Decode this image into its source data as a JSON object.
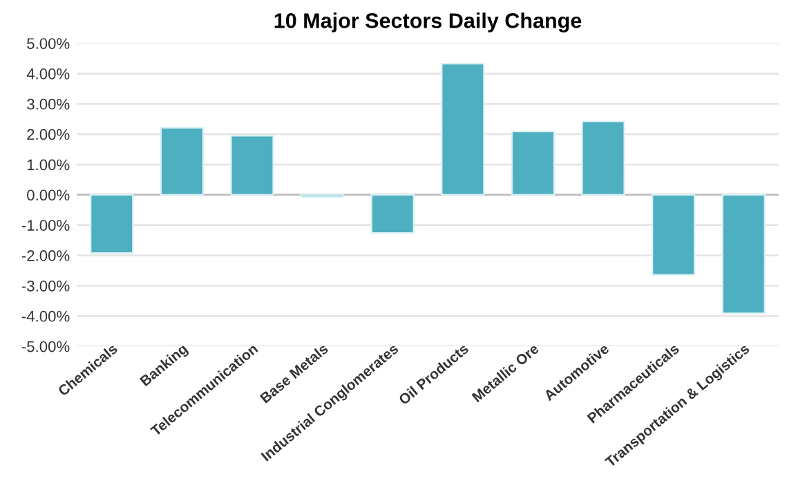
{
  "chart_data": {
    "type": "bar",
    "title": "10 Major Sectors Daily Change",
    "categories": [
      "Chemicals",
      "Banking",
      "Telecommunication",
      "Base Metals",
      "Industrial Conglomerates",
      "Oil Products",
      "Metallic Ore",
      "Automotive",
      "Pharmaceuticals",
      "Transportation & Logistics"
    ],
    "values": [
      -1.92,
      2.21,
      1.95,
      -0.07,
      -1.26,
      4.33,
      2.09,
      2.42,
      -2.64,
      -3.91
    ],
    "color": "#4eafc0",
    "ylim": [
      -5,
      5
    ],
    "yticks": [
      {
        "value": -5,
        "label": "-5.00%"
      },
      {
        "value": -4,
        "label": "-4.00%"
      },
      {
        "value": -3,
        "label": "-3.00%"
      },
      {
        "value": -2,
        "label": "-2.00%"
      },
      {
        "value": -1,
        "label": "-1.00%"
      },
      {
        "value": 0,
        "label": "0.00%"
      },
      {
        "value": 1,
        "label": "1.00%"
      },
      {
        "value": 2,
        "label": "2.00%"
      },
      {
        "value": 3,
        "label": "3.00%"
      },
      {
        "value": 4,
        "label": "4.00%"
      },
      {
        "value": 5,
        "label": "5.00%"
      }
    ],
    "grid": "y"
  }
}
